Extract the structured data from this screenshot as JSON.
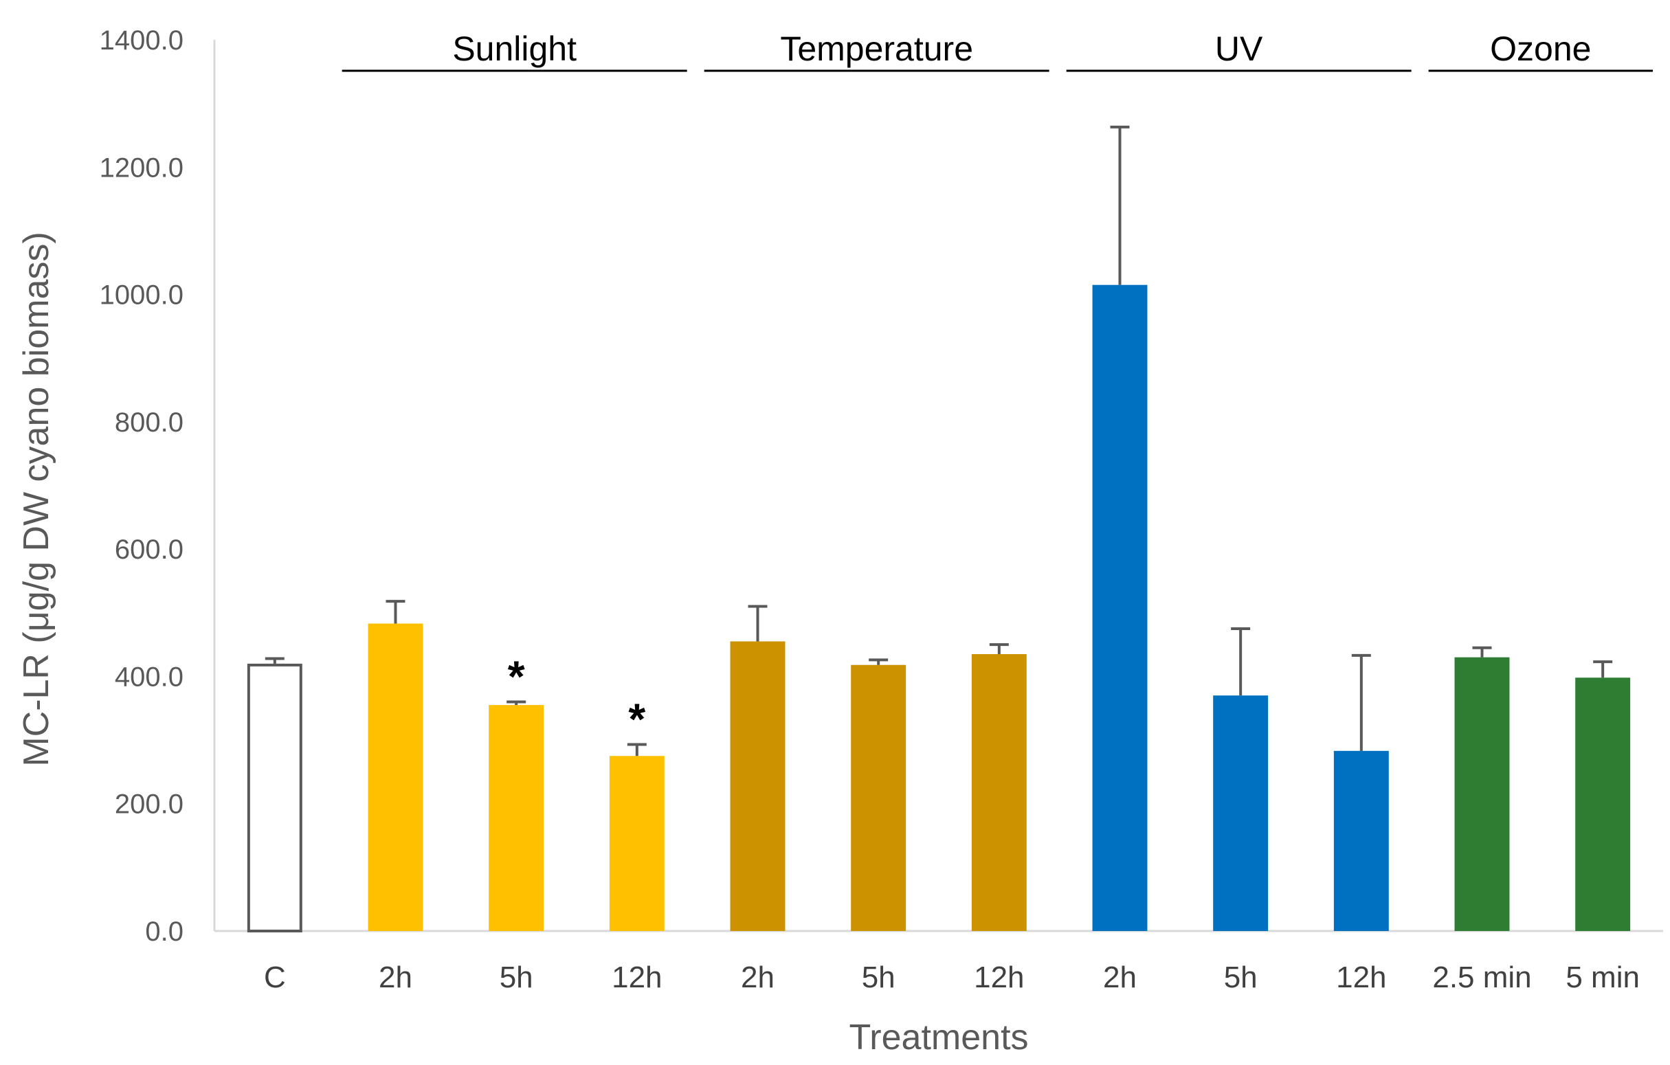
{
  "chart_data": {
    "type": "bar",
    "title": "",
    "xlabel": "Treatments",
    "ylabel": "MC-LR (μg/g DW cyano biomass)",
    "ylim": [
      0,
      1400
    ],
    "yticks": [
      "0.0",
      "200.0",
      "400.0",
      "600.0",
      "800.0",
      "1000.0",
      "1200.0",
      "1400.0"
    ],
    "grid": false,
    "categories": [
      "C",
      "2h",
      "5h",
      "12h",
      "2h",
      "5h",
      "12h",
      "2h",
      "5h",
      "12h",
      "2.5 min",
      "5 min"
    ],
    "values": [
      420,
      483,
      355,
      275,
      455,
      418,
      435,
      1015,
      370,
      283,
      430,
      398
    ],
    "errors": [
      8,
      35,
      5,
      18,
      55,
      8,
      15,
      248,
      105,
      150,
      15,
      25
    ],
    "colors": [
      "#ffffff",
      "#ffc000",
      "#ffc000",
      "#ffc000",
      "#cc9200",
      "#cc9200",
      "#cc9200",
      "#0070c0",
      "#0070c0",
      "#0070c0",
      "#2e7d32",
      "#2e7d32"
    ],
    "edge_colors": [
      "#595959",
      "#ffc000",
      "#ffc000",
      "#ffc000",
      "#cc9200",
      "#cc9200",
      "#cc9200",
      "#0070c0",
      "#0070c0",
      "#0070c0",
      "#2e7d32",
      "#2e7d32"
    ],
    "significance": [
      "",
      "",
      "*",
      "*",
      "",
      "",
      "",
      "",
      "",
      "",
      "",
      ""
    ],
    "groups": [
      {
        "label": "Sunlight",
        "start": 1,
        "end": 3
      },
      {
        "label": "Temperature",
        "start": 4,
        "end": 6
      },
      {
        "label": "UV",
        "start": 7,
        "end": 9
      },
      {
        "label": "Ozone",
        "start": 10,
        "end": 11
      }
    ]
  }
}
